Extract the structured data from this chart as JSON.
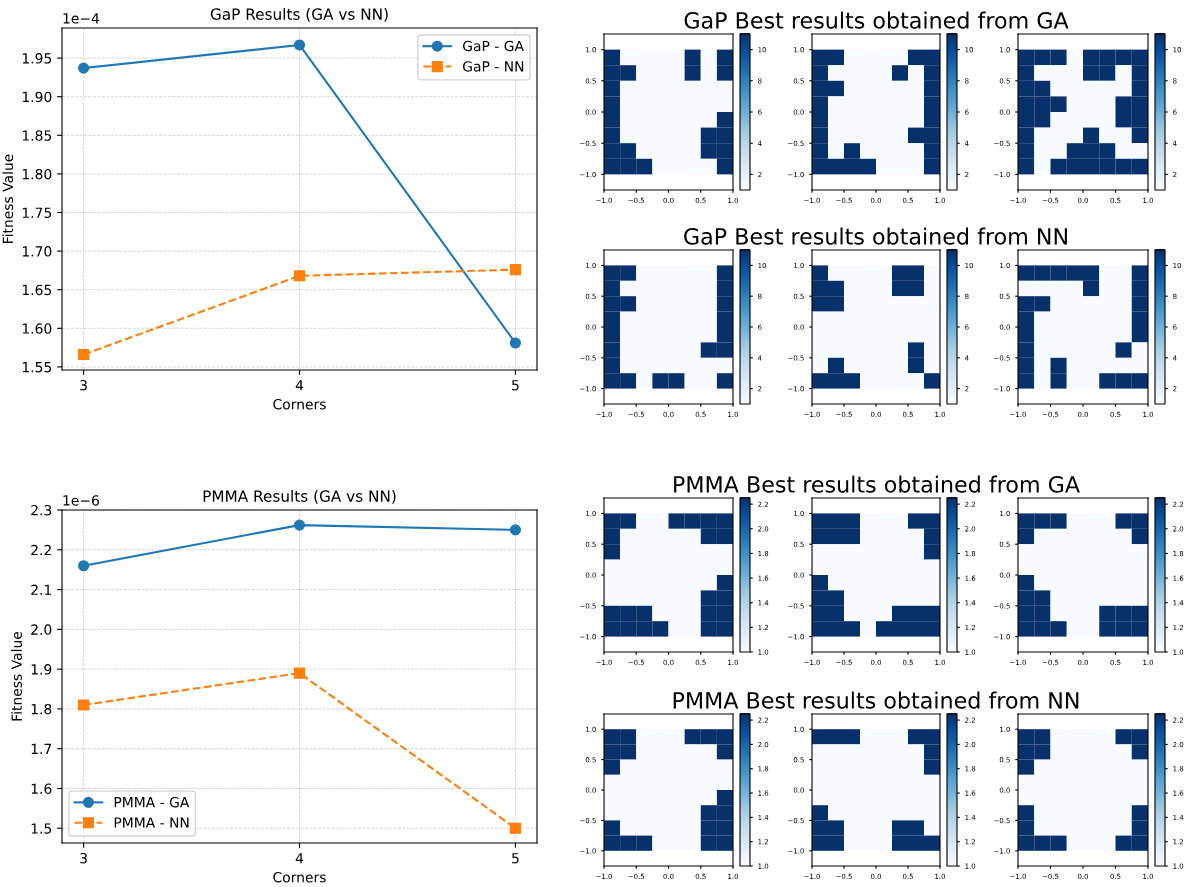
{
  "chart_data": [
    {
      "type": "line",
      "title": "GaP Results (GA vs NN)",
      "xlabel": "Corners",
      "ylabel": "Fitness Value",
      "annotations": [
        "1e−4"
      ],
      "x": [
        3,
        4,
        5
      ],
      "xlim": [
        2.9,
        5.1
      ],
      "xticks": [
        3,
        4,
        5
      ],
      "ylim": [
        1.546,
        1.989
      ],
      "yticks": [
        {
          "value": 1.55,
          "label": "1.55"
        },
        {
          "value": 1.6,
          "label": "1.60"
        },
        {
          "value": 1.65,
          "label": "1.65"
        },
        {
          "value": 1.7,
          "label": "1.70"
        },
        {
          "value": 1.75,
          "label": "1.75"
        },
        {
          "value": 1.8,
          "label": "1.80"
        },
        {
          "value": 1.85,
          "label": "1.85"
        },
        {
          "value": 1.9,
          "label": "1.90"
        },
        {
          "value": 1.95,
          "label": "1.95"
        }
      ],
      "grid": true,
      "legend": "top right",
      "series": [
        {
          "name": "GaP - GA",
          "color": "#1f77b4",
          "marker": "circle",
          "line_style": "solid",
          "values": [
            1.937,
            1.967,
            1.581
          ]
        },
        {
          "name": "GaP - NN",
          "color": "#ff7f0e",
          "marker": "square",
          "line_style": "dashed",
          "values": [
            1.566,
            1.668,
            1.676
          ]
        }
      ]
    },
    {
      "type": "heatmap",
      "x": [
        -0.875,
        -0.625,
        -0.375,
        -0.125,
        0.125,
        0.375,
        0.625,
        0.875
      ],
      "y": [
        0.875,
        0.625,
        0.375,
        0.125,
        -0.125,
        -0.375,
        -0.625,
        -0.875
      ],
      "xlim": [
        -1,
        1
      ],
      "ylim": [
        -1.25,
        1.25
      ],
      "xticks": [
        {
          "value": -1,
          "label": "−1.0"
        },
        {
          "value": -0.5,
          "label": "−0.5"
        },
        {
          "value": 0,
          "label": "0.0"
        },
        {
          "value": 0.5,
          "label": "0.5"
        },
        {
          "value": 1,
          "label": "1.0"
        }
      ],
      "yticks": [
        {
          "value": -1,
          "label": "−1.0"
        },
        {
          "value": -0.5,
          "label": "−0.5"
        },
        {
          "value": 0,
          "label": "0.0"
        },
        {
          "value": 0.5,
          "label": "0.5"
        },
        {
          "value": 1,
          "label": "1.0"
        }
      ],
      "clim": [
        1,
        11
      ],
      "cticks": [
        2,
        4,
        6,
        8,
        10
      ],
      "cells": [
        [
          11,
          1,
          1,
          1,
          1,
          11,
          1,
          11
        ],
        [
          11,
          11,
          1,
          1,
          1,
          11,
          1,
          11
        ],
        [
          11,
          1,
          1,
          1,
          1,
          1,
          1,
          1
        ],
        [
          11,
          1,
          1,
          1,
          1,
          1,
          1,
          1
        ],
        [
          11,
          1,
          1,
          1,
          1,
          1,
          1,
          11
        ],
        [
          11,
          1,
          1,
          1,
          1,
          1,
          11,
          11
        ],
        [
          11,
          11,
          1,
          1,
          1,
          1,
          11,
          11
        ],
        [
          11,
          11,
          11,
          1,
          1,
          1,
          1,
          11
        ]
      ]
    },
    {
      "type": "heatmap",
      "title": "GaP Best results obtained from GA",
      "x": [
        -0.875,
        -0.625,
        -0.375,
        -0.125,
        0.125,
        0.375,
        0.625,
        0.875
      ],
      "y": [
        0.875,
        0.625,
        0.375,
        0.125,
        -0.125,
        -0.375,
        -0.625,
        -0.875
      ],
      "xlim": [
        -1,
        1
      ],
      "ylim": [
        -1.25,
        1.25
      ],
      "xticks": [
        {
          "value": -1,
          "label": "−1.0"
        },
        {
          "value": -0.5,
          "label": "−0.5"
        },
        {
          "value": 0,
          "label": "0.0"
        },
        {
          "value": 0.5,
          "label": "0.5"
        },
        {
          "value": 1,
          "label": "1.0"
        }
      ],
      "yticks": [
        {
          "value": -1,
          "label": "−1.0"
        },
        {
          "value": -0.5,
          "label": "−0.5"
        },
        {
          "value": 0,
          "label": "0.0"
        },
        {
          "value": 0.5,
          "label": "0.5"
        },
        {
          "value": 1,
          "label": "1.0"
        }
      ],
      "clim": [
        1,
        11
      ],
      "cticks": [
        2,
        4,
        6,
        8,
        10
      ],
      "cells": [
        [
          11,
          11,
          1,
          1,
          1,
          1,
          11,
          11
        ],
        [
          11,
          1,
          1,
          1,
          1,
          11,
          1,
          11
        ],
        [
          11,
          11,
          1,
          1,
          1,
          1,
          1,
          11
        ],
        [
          11,
          1,
          1,
          1,
          1,
          1,
          1,
          11
        ],
        [
          11,
          1,
          1,
          1,
          1,
          1,
          1,
          11
        ],
        [
          11,
          1,
          1,
          1,
          1,
          1,
          11,
          11
        ],
        [
          11,
          1,
          11,
          1,
          1,
          1,
          1,
          11
        ],
        [
          11,
          11,
          11,
          11,
          1,
          1,
          1,
          11
        ]
      ]
    },
    {
      "type": "heatmap",
      "x": [
        -0.875,
        -0.625,
        -0.375,
        -0.125,
        0.125,
        0.375,
        0.625,
        0.875
      ],
      "y": [
        0.875,
        0.625,
        0.375,
        0.125,
        -0.125,
        -0.375,
        -0.625,
        -0.875
      ],
      "xlim": [
        -1,
        1
      ],
      "ylim": [
        -1.25,
        1.25
      ],
      "xticks": [
        {
          "value": -1,
          "label": "−1.0"
        },
        {
          "value": -0.5,
          "label": "−0.5"
        },
        {
          "value": 0,
          "label": "0.0"
        },
        {
          "value": 0.5,
          "label": "0.5"
        },
        {
          "value": 1,
          "label": "1.0"
        }
      ],
      "yticks": [
        {
          "value": -1,
          "label": "−1.0"
        },
        {
          "value": -0.5,
          "label": "−0.5"
        },
        {
          "value": 0,
          "label": "0.0"
        },
        {
          "value": 0.5,
          "label": "0.5"
        },
        {
          "value": 1,
          "label": "1.0"
        }
      ],
      "clim": [
        1,
        11
      ],
      "cticks": [
        2,
        4,
        6,
        8,
        10
      ],
      "cells": [
        [
          11,
          11,
          11,
          1,
          11,
          11,
          11,
          11
        ],
        [
          11,
          1,
          1,
          1,
          11,
          11,
          1,
          11
        ],
        [
          11,
          11,
          1,
          1,
          1,
          1,
          1,
          11
        ],
        [
          11,
          11,
          11,
          1,
          1,
          1,
          11,
          11
        ],
        [
          11,
          11,
          1,
          1,
          1,
          1,
          11,
          11
        ],
        [
          11,
          1,
          1,
          1,
          11,
          1,
          1,
          11
        ],
        [
          11,
          1,
          1,
          11,
          11,
          11,
          1,
          1
        ],
        [
          11,
          1,
          11,
          11,
          11,
          11,
          11,
          11
        ]
      ]
    },
    {
      "type": "heatmap",
      "x": [
        -0.875,
        -0.625,
        -0.375,
        -0.125,
        0.125,
        0.375,
        0.625,
        0.875
      ],
      "y": [
        0.875,
        0.625,
        0.375,
        0.125,
        -0.125,
        -0.375,
        -0.625,
        -0.875
      ],
      "xlim": [
        -1,
        1
      ],
      "ylim": [
        -1.25,
        1.25
      ],
      "xticks": [
        {
          "value": -1,
          "label": "−1.0"
        },
        {
          "value": -0.5,
          "label": "−0.5"
        },
        {
          "value": 0,
          "label": "0.0"
        },
        {
          "value": 0.5,
          "label": "0.5"
        },
        {
          "value": 1,
          "label": "1.0"
        }
      ],
      "yticks": [
        {
          "value": -1,
          "label": "−1.0"
        },
        {
          "value": -0.5,
          "label": "−0.5"
        },
        {
          "value": 0,
          "label": "0.0"
        },
        {
          "value": 0.5,
          "label": "0.5"
        },
        {
          "value": 1,
          "label": "1.0"
        }
      ],
      "clim": [
        1,
        11
      ],
      "cticks": [
        2,
        4,
        6,
        8,
        10
      ],
      "cells": [
        [
          11,
          11,
          1,
          1,
          1,
          1,
          1,
          11
        ],
        [
          11,
          1,
          1,
          1,
          1,
          1,
          1,
          11
        ],
        [
          11,
          11,
          1,
          1,
          1,
          1,
          1,
          11
        ],
        [
          11,
          1,
          1,
          1,
          1,
          1,
          1,
          11
        ],
        [
          11,
          1,
          1,
          1,
          1,
          1,
          1,
          11
        ],
        [
          11,
          1,
          1,
          1,
          1,
          1,
          11,
          11
        ],
        [
          11,
          1,
          1,
          1,
          1,
          1,
          1,
          1
        ],
        [
          11,
          11,
          1,
          11,
          11,
          1,
          1,
          11
        ]
      ]
    },
    {
      "type": "heatmap",
      "title": "GaP Best results obtained from NN",
      "x": [
        -0.875,
        -0.625,
        -0.375,
        -0.125,
        0.125,
        0.375,
        0.625,
        0.875
      ],
      "y": [
        0.875,
        0.625,
        0.375,
        0.125,
        -0.125,
        -0.375,
        -0.625,
        -0.875
      ],
      "xlim": [
        -1,
        1
      ],
      "ylim": [
        -1.25,
        1.25
      ],
      "xticks": [
        {
          "value": -1,
          "label": "−1.0"
        },
        {
          "value": -0.5,
          "label": "−0.5"
        },
        {
          "value": 0,
          "label": "0.0"
        },
        {
          "value": 0.5,
          "label": "0.5"
        },
        {
          "value": 1,
          "label": "1.0"
        }
      ],
      "yticks": [
        {
          "value": -1,
          "label": "−1.0"
        },
        {
          "value": -0.5,
          "label": "−0.5"
        },
        {
          "value": 0,
          "label": "0.0"
        },
        {
          "value": 0.5,
          "label": "0.5"
        },
        {
          "value": 1,
          "label": "1.0"
        }
      ],
      "clim": [
        1,
        11
      ],
      "cticks": [
        2,
        4,
        6,
        8,
        10
      ],
      "cells": [
        [
          11,
          1,
          1,
          1,
          1,
          11,
          11,
          1
        ],
        [
          11,
          11,
          1,
          1,
          1,
          11,
          11,
          1
        ],
        [
          11,
          11,
          1,
          1,
          1,
          1,
          1,
          1
        ],
        [
          1,
          1,
          1,
          1,
          1,
          1,
          1,
          1
        ],
        [
          1,
          1,
          1,
          1,
          1,
          1,
          1,
          1
        ],
        [
          1,
          1,
          1,
          1,
          1,
          1,
          11,
          1
        ],
        [
          1,
          11,
          1,
          1,
          1,
          1,
          11,
          1
        ],
        [
          11,
          11,
          11,
          1,
          1,
          1,
          1,
          11
        ]
      ]
    },
    {
      "type": "heatmap",
      "x": [
        -0.875,
        -0.625,
        -0.375,
        -0.125,
        0.125,
        0.375,
        0.625,
        0.875
      ],
      "y": [
        0.875,
        0.625,
        0.375,
        0.125,
        -0.125,
        -0.375,
        -0.625,
        -0.875
      ],
      "xlim": [
        -1,
        1
      ],
      "ylim": [
        -1.25,
        1.25
      ],
      "xticks": [
        {
          "value": -1,
          "label": "−1.0"
        },
        {
          "value": -0.5,
          "label": "−0.5"
        },
        {
          "value": 0,
          "label": "0.0"
        },
        {
          "value": 0.5,
          "label": "0.5"
        },
        {
          "value": 1,
          "label": "1.0"
        }
      ],
      "yticks": [
        {
          "value": -1,
          "label": "−1.0"
        },
        {
          "value": -0.5,
          "label": "−0.5"
        },
        {
          "value": 0,
          "label": "0.0"
        },
        {
          "value": 0.5,
          "label": "0.5"
        },
        {
          "value": 1,
          "label": "1.0"
        }
      ],
      "clim": [
        1,
        11
      ],
      "cticks": [
        2,
        4,
        6,
        8,
        10
      ],
      "cells": [
        [
          11,
          11,
          11,
          11,
          11,
          1,
          1,
          11
        ],
        [
          1,
          1,
          1,
          1,
          11,
          1,
          1,
          11
        ],
        [
          11,
          11,
          1,
          1,
          1,
          1,
          1,
          11
        ],
        [
          11,
          1,
          1,
          1,
          1,
          1,
          1,
          11
        ],
        [
          11,
          1,
          1,
          1,
          1,
          1,
          1,
          11
        ],
        [
          11,
          1,
          1,
          1,
          1,
          1,
          11,
          1
        ],
        [
          11,
          1,
          11,
          1,
          1,
          1,
          1,
          1
        ],
        [
          11,
          1,
          11,
          1,
          1,
          11,
          11,
          11
        ]
      ]
    },
    {
      "type": "line",
      "title": "PMMA Results (GA vs NN)",
      "xlabel": "Corners",
      "ylabel": "Fitness Value",
      "annotations": [
        "1e−6"
      ],
      "x": [
        3,
        4,
        5
      ],
      "xlim": [
        2.9,
        5.1
      ],
      "xticks": [
        3,
        4,
        5
      ],
      "ylim": [
        1.463,
        2.3
      ],
      "yticks": [
        {
          "value": 1.5,
          "label": "1.5"
        },
        {
          "value": 1.6,
          "label": "1.6"
        },
        {
          "value": 1.7,
          "label": "1.7"
        },
        {
          "value": 1.8,
          "label": "1.8"
        },
        {
          "value": 1.9,
          "label": "1.9"
        },
        {
          "value": 2.0,
          "label": "2.0"
        },
        {
          "value": 2.1,
          "label": "2.1"
        },
        {
          "value": 2.2,
          "label": "2.2"
        },
        {
          "value": 2.3,
          "label": "2.3"
        }
      ],
      "grid": true,
      "legend": "bottom left",
      "series": [
        {
          "name": "PMMA - GA",
          "color": "#1f77b4",
          "marker": "circle",
          "line_style": "solid",
          "values": [
            2.16,
            2.262,
            2.25
          ]
        },
        {
          "name": "PMMA - NN",
          "color": "#ff7f0e",
          "marker": "square",
          "line_style": "dashed",
          "values": [
            1.81,
            1.89,
            1.5
          ]
        }
      ]
    },
    {
      "type": "heatmap",
      "x": [
        -0.875,
        -0.625,
        -0.375,
        -0.125,
        0.125,
        0.375,
        0.625,
        0.875
      ],
      "y": [
        0.875,
        0.625,
        0.375,
        0.125,
        -0.125,
        -0.375,
        -0.625,
        -0.875
      ],
      "xlim": [
        -1,
        1
      ],
      "ylim": [
        -1.25,
        1.25
      ],
      "xticks": [
        {
          "value": -1,
          "label": "−1.0"
        },
        {
          "value": -0.5,
          "label": "−0.5"
        },
        {
          "value": 0,
          "label": "0.0"
        },
        {
          "value": 0.5,
          "label": "0.5"
        },
        {
          "value": 1,
          "label": "1.0"
        }
      ],
      "yticks": [
        {
          "value": -1,
          "label": "−1.0"
        },
        {
          "value": -0.5,
          "label": "−0.5"
        },
        {
          "value": 0,
          "label": "0.0"
        },
        {
          "value": 0.5,
          "label": "0.5"
        },
        {
          "value": 1,
          "label": "1.0"
        }
      ],
      "clim": [
        1,
        2.25
      ],
      "cticks": [
        {
          "value": 1,
          "label": "1.0"
        },
        {
          "value": 1.2,
          "label": "1.2"
        },
        {
          "value": 1.4,
          "label": "1.4"
        },
        {
          "value": 1.6,
          "label": "1.6"
        },
        {
          "value": 1.8,
          "label": "1.8"
        },
        {
          "value": 2,
          "label": "2.0"
        },
        {
          "value": 2.2,
          "label": "2.2"
        }
      ],
      "cells": [
        [
          2.25,
          2.25,
          1,
          1,
          2.25,
          2.25,
          2.25,
          2.25
        ],
        [
          2.25,
          1,
          1,
          1,
          1,
          1,
          2.25,
          2.25
        ],
        [
          2.25,
          1,
          1,
          1,
          1,
          1,
          1,
          1
        ],
        [
          1,
          1,
          1,
          1,
          1,
          1,
          1,
          1
        ],
        [
          1,
          1,
          1,
          1,
          1,
          1,
          1,
          2.25
        ],
        [
          1,
          1,
          1,
          1,
          1,
          1,
          2.25,
          2.25
        ],
        [
          2.25,
          2.25,
          2.25,
          1,
          1,
          1,
          2.25,
          2.25
        ],
        [
          2.25,
          2.25,
          2.25,
          2.25,
          1,
          1,
          2.25,
          2.25
        ]
      ]
    },
    {
      "type": "heatmap",
      "title": "PMMA Best results obtained from GA",
      "x": [
        -0.875,
        -0.625,
        -0.375,
        -0.125,
        0.125,
        0.375,
        0.625,
        0.875
      ],
      "y": [
        0.875,
        0.625,
        0.375,
        0.125,
        -0.125,
        -0.375,
        -0.625,
        -0.875
      ],
      "xlim": [
        -1,
        1
      ],
      "ylim": [
        -1.25,
        1.25
      ],
      "xticks": [
        {
          "value": -1,
          "label": "−1.0"
        },
        {
          "value": -0.5,
          "label": "−0.5"
        },
        {
          "value": 0,
          "label": "0.0"
        },
        {
          "value": 0.5,
          "label": "0.5"
        },
        {
          "value": 1,
          "label": "1.0"
        }
      ],
      "yticks": [
        {
          "value": -1,
          "label": "−1.0"
        },
        {
          "value": -0.5,
          "label": "−0.5"
        },
        {
          "value": 0,
          "label": "0.0"
        },
        {
          "value": 0.5,
          "label": "0.5"
        },
        {
          "value": 1,
          "label": "1.0"
        }
      ],
      "clim": [
        1,
        2.25
      ],
      "cticks": [
        {
          "value": 1,
          "label": "1.0"
        },
        {
          "value": 1.2,
          "label": "1.2"
        },
        {
          "value": 1.4,
          "label": "1.4"
        },
        {
          "value": 1.6,
          "label": "1.6"
        },
        {
          "value": 1.8,
          "label": "1.8"
        },
        {
          "value": 2,
          "label": "2.0"
        },
        {
          "value": 2.2,
          "label": "2.2"
        }
      ],
      "cells": [
        [
          2.25,
          2.25,
          2.25,
          1,
          1,
          1,
          2.25,
          2.25
        ],
        [
          2.25,
          2.25,
          2.25,
          1,
          1,
          1,
          1,
          2.25
        ],
        [
          1,
          1,
          1,
          1,
          1,
          1,
          1,
          2.25
        ],
        [
          1,
          1,
          1,
          1,
          1,
          1,
          1,
          1
        ],
        [
          2.25,
          1,
          1,
          1,
          1,
          1,
          1,
          1
        ],
        [
          2.25,
          2.25,
          1,
          1,
          1,
          1,
          1,
          1
        ],
        [
          2.25,
          2.25,
          1,
          1,
          1,
          2.25,
          2.25,
          2.25
        ],
        [
          2.25,
          2.25,
          2.25,
          1,
          2.25,
          2.25,
          2.25,
          2.25
        ]
      ]
    },
    {
      "type": "heatmap",
      "x": [
        -0.875,
        -0.625,
        -0.375,
        -0.125,
        0.125,
        0.375,
        0.625,
        0.875
      ],
      "y": [
        0.875,
        0.625,
        0.375,
        0.125,
        -0.125,
        -0.375,
        -0.625,
        -0.875
      ],
      "xlim": [
        -1,
        1
      ],
      "ylim": [
        -1.25,
        1.25
      ],
      "xticks": [
        {
          "value": -1,
          "label": "−1.0"
        },
        {
          "value": -0.5,
          "label": "−0.5"
        },
        {
          "value": 0,
          "label": "0.0"
        },
        {
          "value": 0.5,
          "label": "0.5"
        },
        {
          "value": 1,
          "label": "1.0"
        }
      ],
      "yticks": [
        {
          "value": -1,
          "label": "−1.0"
        },
        {
          "value": -0.5,
          "label": "−0.5"
        },
        {
          "value": 0,
          "label": "0.0"
        },
        {
          "value": 0.5,
          "label": "0.5"
        },
        {
          "value": 1,
          "label": "1.0"
        }
      ],
      "clim": [
        1,
        2.25
      ],
      "cticks": [
        {
          "value": 1,
          "label": "1.0"
        },
        {
          "value": 1.2,
          "label": "1.2"
        },
        {
          "value": 1.4,
          "label": "1.4"
        },
        {
          "value": 1.6,
          "label": "1.6"
        },
        {
          "value": 1.8,
          "label": "1.8"
        },
        {
          "value": 2,
          "label": "2.0"
        },
        {
          "value": 2.2,
          "label": "2.2"
        }
      ],
      "cells": [
        [
          2.25,
          2.25,
          2.25,
          1,
          1,
          1,
          2.25,
          2.25
        ],
        [
          2.25,
          1,
          1,
          1,
          1,
          1,
          1,
          2.25
        ],
        [
          1,
          1,
          1,
          1,
          1,
          1,
          1,
          1
        ],
        [
          1,
          1,
          1,
          1,
          1,
          1,
          1,
          1
        ],
        [
          2.25,
          1,
          1,
          1,
          1,
          1,
          1,
          1
        ],
        [
          2.25,
          2.25,
          1,
          1,
          1,
          1,
          1,
          1
        ],
        [
          2.25,
          2.25,
          1,
          1,
          1,
          2.25,
          2.25,
          2.25
        ],
        [
          2.25,
          2.25,
          2.25,
          1,
          1,
          2.25,
          2.25,
          2.25
        ]
      ]
    },
    {
      "type": "heatmap",
      "x": [
        -0.875,
        -0.625,
        -0.375,
        -0.125,
        0.125,
        0.375,
        0.625,
        0.875
      ],
      "y": [
        0.875,
        0.625,
        0.375,
        0.125,
        -0.125,
        -0.375,
        -0.625,
        -0.875
      ],
      "xlim": [
        -1,
        1
      ],
      "ylim": [
        -1.25,
        1.25
      ],
      "xticks": [
        {
          "value": -1,
          "label": "−1.0"
        },
        {
          "value": -0.5,
          "label": "−0.5"
        },
        {
          "value": 0,
          "label": "0.0"
        },
        {
          "value": 0.5,
          "label": "0.5"
        },
        {
          "value": 1,
          "label": "1.0"
        }
      ],
      "yticks": [
        {
          "value": -1,
          "label": "−1.0"
        },
        {
          "value": -0.5,
          "label": "−0.5"
        },
        {
          "value": 0,
          "label": "0.0"
        },
        {
          "value": 0.5,
          "label": "0.5"
        },
        {
          "value": 1,
          "label": "1.0"
        }
      ],
      "clim": [
        1,
        2.25
      ],
      "cticks": [
        {
          "value": 1,
          "label": "1.0"
        },
        {
          "value": 1.2,
          "label": "1.2"
        },
        {
          "value": 1.4,
          "label": "1.4"
        },
        {
          "value": 1.6,
          "label": "1.6"
        },
        {
          "value": 1.8,
          "label": "1.8"
        },
        {
          "value": 2,
          "label": "2.0"
        },
        {
          "value": 2.2,
          "label": "2.2"
        }
      ],
      "cells": [
        [
          2.25,
          2.25,
          1,
          1,
          1,
          2.25,
          2.25,
          2.25
        ],
        [
          2.25,
          2.25,
          1,
          1,
          1,
          1,
          1,
          2.25
        ],
        [
          2.25,
          1,
          1,
          1,
          1,
          1,
          1,
          1
        ],
        [
          1,
          1,
          1,
          1,
          1,
          1,
          1,
          1
        ],
        [
          1,
          1,
          1,
          1,
          1,
          1,
          1,
          2.25
        ],
        [
          1,
          1,
          1,
          1,
          1,
          1,
          2.25,
          2.25
        ],
        [
          2.25,
          1,
          1,
          1,
          1,
          1,
          2.25,
          2.25
        ],
        [
          2.25,
          2.25,
          2.25,
          1,
          1,
          1,
          2.25,
          2.25
        ]
      ]
    },
    {
      "type": "heatmap",
      "title": "PMMA Best results obtained from NN",
      "x": [
        -0.875,
        -0.625,
        -0.375,
        -0.125,
        0.125,
        0.375,
        0.625,
        0.875
      ],
      "y": [
        0.875,
        0.625,
        0.375,
        0.125,
        -0.125,
        -0.375,
        -0.625,
        -0.875
      ],
      "xlim": [
        -1,
        1
      ],
      "ylim": [
        -1.25,
        1.25
      ],
      "xticks": [
        {
          "value": -1,
          "label": "−1.0"
        },
        {
          "value": -0.5,
          "label": "−0.5"
        },
        {
          "value": 0,
          "label": "0.0"
        },
        {
          "value": 0.5,
          "label": "0.5"
        },
        {
          "value": 1,
          "label": "1.0"
        }
      ],
      "yticks": [
        {
          "value": -1,
          "label": "−1.0"
        },
        {
          "value": -0.5,
          "label": "−0.5"
        },
        {
          "value": 0,
          "label": "0.0"
        },
        {
          "value": 0.5,
          "label": "0.5"
        },
        {
          "value": 1,
          "label": "1.0"
        }
      ],
      "clim": [
        1,
        2.25
      ],
      "cticks": [
        {
          "value": 1,
          "label": "1.0"
        },
        {
          "value": 1.2,
          "label": "1.2"
        },
        {
          "value": 1.4,
          "label": "1.4"
        },
        {
          "value": 1.6,
          "label": "1.6"
        },
        {
          "value": 1.8,
          "label": "1.8"
        },
        {
          "value": 2,
          "label": "2.0"
        },
        {
          "value": 2.2,
          "label": "2.2"
        }
      ],
      "cells": [
        [
          2.25,
          2.25,
          2.25,
          1,
          1,
          1,
          2.25,
          2.25
        ],
        [
          1,
          1,
          1,
          1,
          1,
          1,
          1,
          2.25
        ],
        [
          1,
          1,
          1,
          1,
          1,
          1,
          1,
          2.25
        ],
        [
          1,
          1,
          1,
          1,
          1,
          1,
          1,
          1
        ],
        [
          1,
          1,
          1,
          1,
          1,
          1,
          1,
          1
        ],
        [
          2.25,
          1,
          1,
          1,
          1,
          1,
          1,
          1
        ],
        [
          2.25,
          2.25,
          1,
          1,
          1,
          2.25,
          2.25,
          1
        ],
        [
          2.25,
          2.25,
          1,
          1,
          1,
          2.25,
          2.25,
          2.25
        ]
      ]
    },
    {
      "type": "heatmap",
      "x": [
        -0.875,
        -0.625,
        -0.375,
        -0.125,
        0.125,
        0.375,
        0.625,
        0.875
      ],
      "y": [
        0.875,
        0.625,
        0.375,
        0.125,
        -0.125,
        -0.375,
        -0.625,
        -0.875
      ],
      "xlim": [
        -1,
        1
      ],
      "ylim": [
        -1.25,
        1.25
      ],
      "xticks": [
        {
          "value": -1,
          "label": "−1.0"
        },
        {
          "value": -0.5,
          "label": "−0.5"
        },
        {
          "value": 0,
          "label": "0.0"
        },
        {
          "value": 0.5,
          "label": "0.5"
        },
        {
          "value": 1,
          "label": "1.0"
        }
      ],
      "yticks": [
        {
          "value": -1,
          "label": "−1.0"
        },
        {
          "value": -0.5,
          "label": "−0.5"
        },
        {
          "value": 0,
          "label": "0.0"
        },
        {
          "value": 0.5,
          "label": "0.5"
        },
        {
          "value": 1,
          "label": "1.0"
        }
      ],
      "clim": [
        1,
        2.25
      ],
      "cticks": [
        {
          "value": 1,
          "label": "1.0"
        },
        {
          "value": 1.2,
          "label": "1.2"
        },
        {
          "value": 1.4,
          "label": "1.4"
        },
        {
          "value": 1.6,
          "label": "1.6"
        },
        {
          "value": 1.8,
          "label": "1.8"
        },
        {
          "value": 2,
          "label": "2.0"
        },
        {
          "value": 2.2,
          "label": "2.2"
        }
      ],
      "cells": [
        [
          2.25,
          2.25,
          1,
          1,
          1,
          1,
          2.25,
          2.25
        ],
        [
          2.25,
          2.25,
          1,
          1,
          1,
          1,
          1,
          2.25
        ],
        [
          2.25,
          1,
          1,
          1,
          1,
          1,
          1,
          1
        ],
        [
          1,
          1,
          1,
          1,
          1,
          1,
          1,
          1
        ],
        [
          1,
          1,
          1,
          1,
          1,
          1,
          1,
          1
        ],
        [
          2.25,
          1,
          1,
          1,
          1,
          1,
          1,
          2.25
        ],
        [
          2.25,
          1,
          1,
          1,
          1,
          1,
          1,
          2.25
        ],
        [
          2.25,
          2.25,
          2.25,
          1,
          1,
          1,
          2.25,
          2.25
        ]
      ]
    }
  ]
}
